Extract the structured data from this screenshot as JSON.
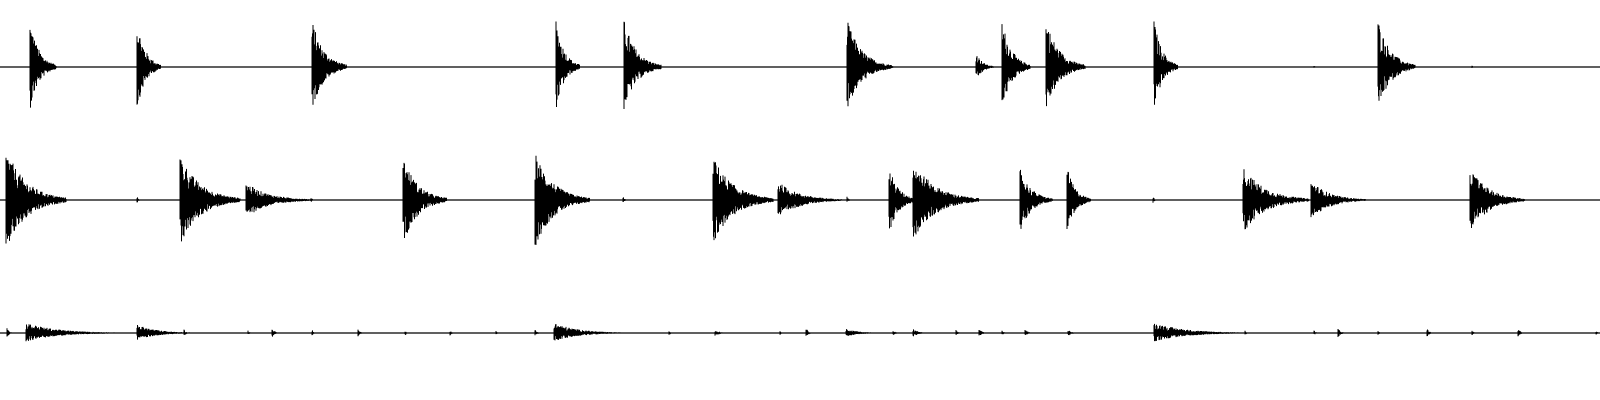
{
  "chart_data": {
    "type": "line",
    "title": "",
    "xlabel": "",
    "ylabel": "",
    "grid": false,
    "legend": "none",
    "xlim": [
      0,
      1600
    ],
    "ylim": [
      -1,
      1
    ],
    "line_color": "#000000",
    "background": "#ffffff",
    "series": [
      {
        "transients": [
          {
            "t": 30,
            "a": 0.92,
            "d": 24,
            "s": 0.6
          },
          {
            "t": 137,
            "a": 0.92,
            "d": 22,
            "s": 0.6
          },
          {
            "t": 312,
            "a": 0.92,
            "d": 32,
            "s": 0.6
          },
          {
            "t": 556,
            "a": 0.92,
            "d": 22,
            "s": 0.6
          },
          {
            "t": 624,
            "a": 0.92,
            "d": 34,
            "s": 0.6
          },
          {
            "t": 847,
            "a": 0.92,
            "d": 40,
            "s": 0.6
          },
          {
            "t": 891,
            "a": 0.05,
            "d": 3,
            "s": 0.4
          },
          {
            "t": 976,
            "a": 0.3,
            "d": 16,
            "s": 0.8
          },
          {
            "t": 1002,
            "a": 0.92,
            "d": 26,
            "s": 0.6
          },
          {
            "t": 1046,
            "a": 0.92,
            "d": 36,
            "s": 0.6
          },
          {
            "t": 1154,
            "a": 0.92,
            "d": 22,
            "s": 0.6
          },
          {
            "t": 1314,
            "a": 0.03,
            "d": 2,
            "s": 0.4
          },
          {
            "t": 1378,
            "a": 0.92,
            "d": 34,
            "s": 0.6
          },
          {
            "t": 1472,
            "a": 0.03,
            "d": 2,
            "s": 0.4
          }
        ]
      },
      {
        "transients": [
          {
            "t": 6,
            "a": 1.0,
            "d": 55,
            "s": 1.0
          },
          {
            "t": 137,
            "a": 0.07,
            "d": 3,
            "s": 0.5
          },
          {
            "t": 180,
            "a": 0.88,
            "d": 55,
            "s": 1.0
          },
          {
            "t": 246,
            "a": 0.34,
            "d": 60,
            "s": 1.0
          },
          {
            "t": 311,
            "a": 0.05,
            "d": 3,
            "s": 0.5
          },
          {
            "t": 403,
            "a": 0.86,
            "d": 40,
            "s": 1.0
          },
          {
            "t": 535,
            "a": 0.92,
            "d": 50,
            "s": 1.0
          },
          {
            "t": 623,
            "a": 0.07,
            "d": 3,
            "s": 0.5
          },
          {
            "t": 713,
            "a": 0.85,
            "d": 55,
            "s": 1.0
          },
          {
            "t": 778,
            "a": 0.36,
            "d": 58,
            "s": 1.0
          },
          {
            "t": 847,
            "a": 0.07,
            "d": 3,
            "s": 0.5
          },
          {
            "t": 889,
            "a": 0.65,
            "d": 25,
            "s": 1.0
          },
          {
            "t": 913,
            "a": 0.78,
            "d": 60,
            "s": 1.0
          },
          {
            "t": 1020,
            "a": 0.62,
            "d": 30,
            "s": 1.0
          },
          {
            "t": 1067,
            "a": 0.64,
            "d": 22,
            "s": 1.0
          },
          {
            "t": 1153,
            "a": 0.07,
            "d": 3,
            "s": 0.5
          },
          {
            "t": 1243,
            "a": 0.65,
            "d": 60,
            "s": 1.0
          },
          {
            "t": 1311,
            "a": 0.38,
            "d": 50,
            "s": 1.0
          },
          {
            "t": 1470,
            "a": 0.63,
            "d": 50,
            "s": 1.0
          }
        ]
      },
      {
        "transients": [
          {
            "t": 7,
            "a": 0.12,
            "d": 4,
            "s": 0.5
          },
          {
            "t": 26,
            "a": 0.2,
            "d": 85,
            "s": 0.35
          },
          {
            "t": 137,
            "a": 0.16,
            "d": 55,
            "s": 0.35
          },
          {
            "t": 184,
            "a": 0.07,
            "d": 4,
            "s": 0.5
          },
          {
            "t": 248,
            "a": 0.05,
            "d": 3,
            "s": 0.5
          },
          {
            "t": 272,
            "a": 0.1,
            "d": 6,
            "s": 0.5
          },
          {
            "t": 312,
            "a": 0.07,
            "d": 3,
            "s": 0.5
          },
          {
            "t": 358,
            "a": 0.08,
            "d": 4,
            "s": 0.5
          },
          {
            "t": 405,
            "a": 0.06,
            "d": 3,
            "s": 0.5
          },
          {
            "t": 450,
            "a": 0.06,
            "d": 3,
            "s": 0.5
          },
          {
            "t": 496,
            "a": 0.04,
            "d": 2,
            "s": 0.5
          },
          {
            "t": 535,
            "a": 0.08,
            "d": 4,
            "s": 0.5
          },
          {
            "t": 554,
            "a": 0.2,
            "d": 65,
            "s": 0.35
          },
          {
            "t": 669,
            "a": 0.05,
            "d": 3,
            "s": 0.5
          },
          {
            "t": 715,
            "a": 0.06,
            "d": 12,
            "s": 0.5
          },
          {
            "t": 780,
            "a": 0.04,
            "d": 3,
            "s": 0.5
          },
          {
            "t": 806,
            "a": 0.09,
            "d": 6,
            "s": 0.5
          },
          {
            "t": 846,
            "a": 0.08,
            "d": 35,
            "s": 0.4
          },
          {
            "t": 893,
            "a": 0.05,
            "d": 6,
            "s": 0.5
          },
          {
            "t": 913,
            "a": 0.08,
            "d": 14,
            "s": 0.5
          },
          {
            "t": 956,
            "a": 0.06,
            "d": 4,
            "s": 0.5
          },
          {
            "t": 979,
            "a": 0.07,
            "d": 8,
            "s": 0.5
          },
          {
            "t": 1002,
            "a": 0.05,
            "d": 4,
            "s": 0.5
          },
          {
            "t": 1025,
            "a": 0.06,
            "d": 8,
            "s": 0.5
          },
          {
            "t": 1068,
            "a": 0.07,
            "d": 8,
            "s": 0.5
          },
          {
            "t": 1154,
            "a": 0.2,
            "d": 85,
            "s": 0.35
          },
          {
            "t": 1245,
            "a": 0.05,
            "d": 3,
            "s": 0.5
          },
          {
            "t": 1314,
            "a": 0.05,
            "d": 4,
            "s": 0.5
          },
          {
            "t": 1338,
            "a": 0.1,
            "d": 6,
            "s": 0.5
          },
          {
            "t": 1378,
            "a": 0.05,
            "d": 3,
            "s": 0.5
          },
          {
            "t": 1427,
            "a": 0.09,
            "d": 5,
            "s": 0.5
          },
          {
            "t": 1472,
            "a": 0.05,
            "d": 4,
            "s": 0.5
          },
          {
            "t": 1518,
            "a": 0.09,
            "d": 5,
            "s": 0.5
          },
          {
            "t": 1596,
            "a": 0.05,
            "d": 3,
            "s": 0.5
          }
        ]
      }
    ]
  }
}
